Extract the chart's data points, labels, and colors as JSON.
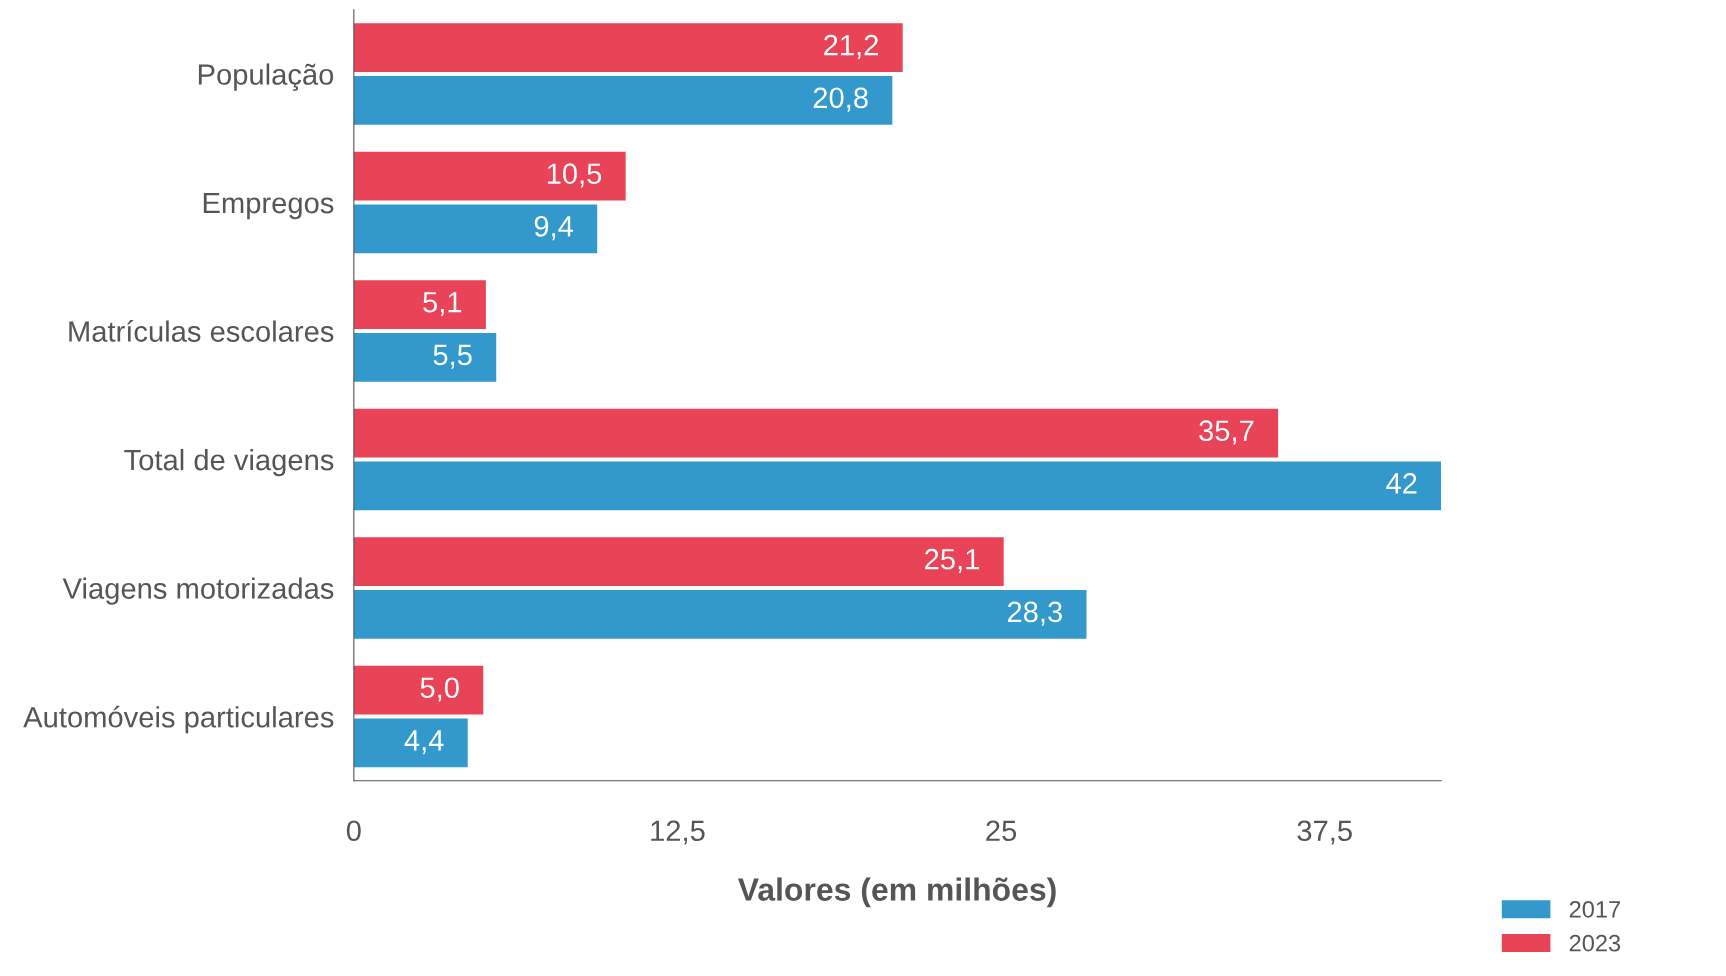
{
  "chart_data": {
    "type": "bar",
    "orientation": "horizontal",
    "xlabel": "Valores (em milhões)",
    "categories": [
      "População",
      "Empregos",
      "Matrículas escolares",
      "Total de viagens",
      "Viagens motorizadas",
      "Automóveis particulares"
    ],
    "series": [
      {
        "name": "2017",
        "color": "#3399cc",
        "values": [
          20.8,
          9.4,
          5.5,
          42,
          28.3,
          4.4
        ],
        "value_labels": [
          "20,8",
          "9,4",
          "5,5",
          "42",
          "28,3",
          "4,4"
        ]
      },
      {
        "name": "2023",
        "color": "#e84357",
        "values": [
          21.2,
          10.5,
          5.1,
          35.7,
          25.1,
          5.0
        ],
        "value_labels": [
          "21,2",
          "10,5",
          "5,1",
          "35,7",
          "25,1",
          "5,0"
        ]
      }
    ],
    "xlim": [
      0,
      42
    ],
    "xticks": [
      0,
      {
        "value": 12.5,
        "label": "12,5"
      },
      25,
      {
        "value": 37.5,
        "label": "37,5"
      }
    ],
    "grid": false,
    "legend": "bottom right"
  }
}
